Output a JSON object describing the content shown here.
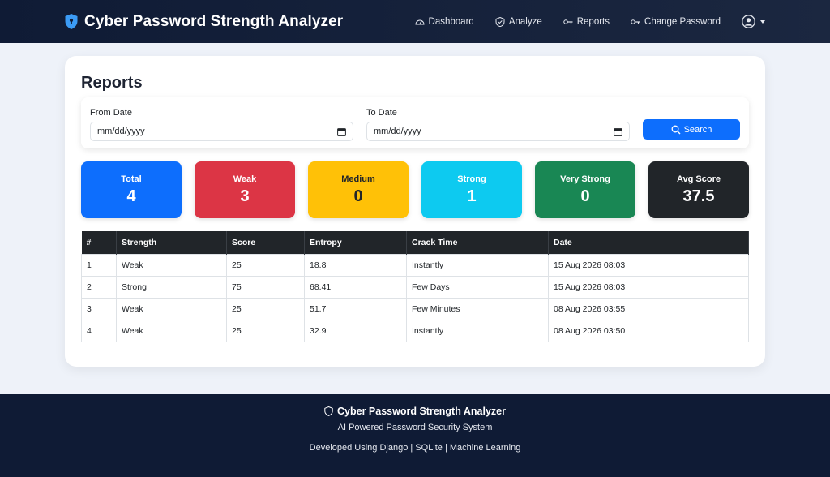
{
  "app": {
    "title": "Cyber Password Strength Analyzer"
  },
  "nav": {
    "links": [
      {
        "label": "Dashboard",
        "icon": "speedometer-icon"
      },
      {
        "label": "Analyze",
        "icon": "shield-check-icon"
      },
      {
        "label": "Reports",
        "icon": "key-icon"
      },
      {
        "label": "Change Password",
        "icon": "key-icon"
      }
    ],
    "user_icon": "user-circle-icon"
  },
  "page": {
    "title": "Reports"
  },
  "filter": {
    "from_label": "From Date",
    "from_value": "mm/dd/yyyy",
    "to_label": "To Date",
    "to_value": "mm/dd/yyyy",
    "search_label": "Search"
  },
  "stats": [
    {
      "label": "Total",
      "value": "4",
      "color": "#0d6efd"
    },
    {
      "label": "Weak",
      "value": "3",
      "color": "#dc3545"
    },
    {
      "label": "Medium",
      "value": "0",
      "color": "#ffc107"
    },
    {
      "label": "Strong",
      "value": "1",
      "color": "#0dcaf0"
    },
    {
      "label": "Very Strong",
      "value": "0",
      "color": "#198754"
    },
    {
      "label": "Avg Score",
      "value": "37.5",
      "color": "#212529"
    }
  ],
  "table": {
    "headers": [
      "#",
      "Strength",
      "Score",
      "Entropy",
      "Crack Time",
      "Date"
    ],
    "rows": [
      [
        "1",
        "Weak",
        "25",
        "18.8",
        "Instantly",
        "15 Aug 2026 08:03"
      ],
      [
        "2",
        "Strong",
        "75",
        "68.41",
        "Few Days",
        "15 Aug 2026 08:03"
      ],
      [
        "3",
        "Weak",
        "25",
        "51.7",
        "Few Minutes",
        "08 Aug 2026 03:55"
      ],
      [
        "4",
        "Weak",
        "25",
        "32.9",
        "Instantly",
        "08 Aug 2026 03:50"
      ]
    ]
  },
  "footer": {
    "title": "Cyber Password Strength Analyzer",
    "subtitle": "AI Powered Password Security System",
    "developed": "Developed Using Django | SQLite | Machine Learning"
  }
}
